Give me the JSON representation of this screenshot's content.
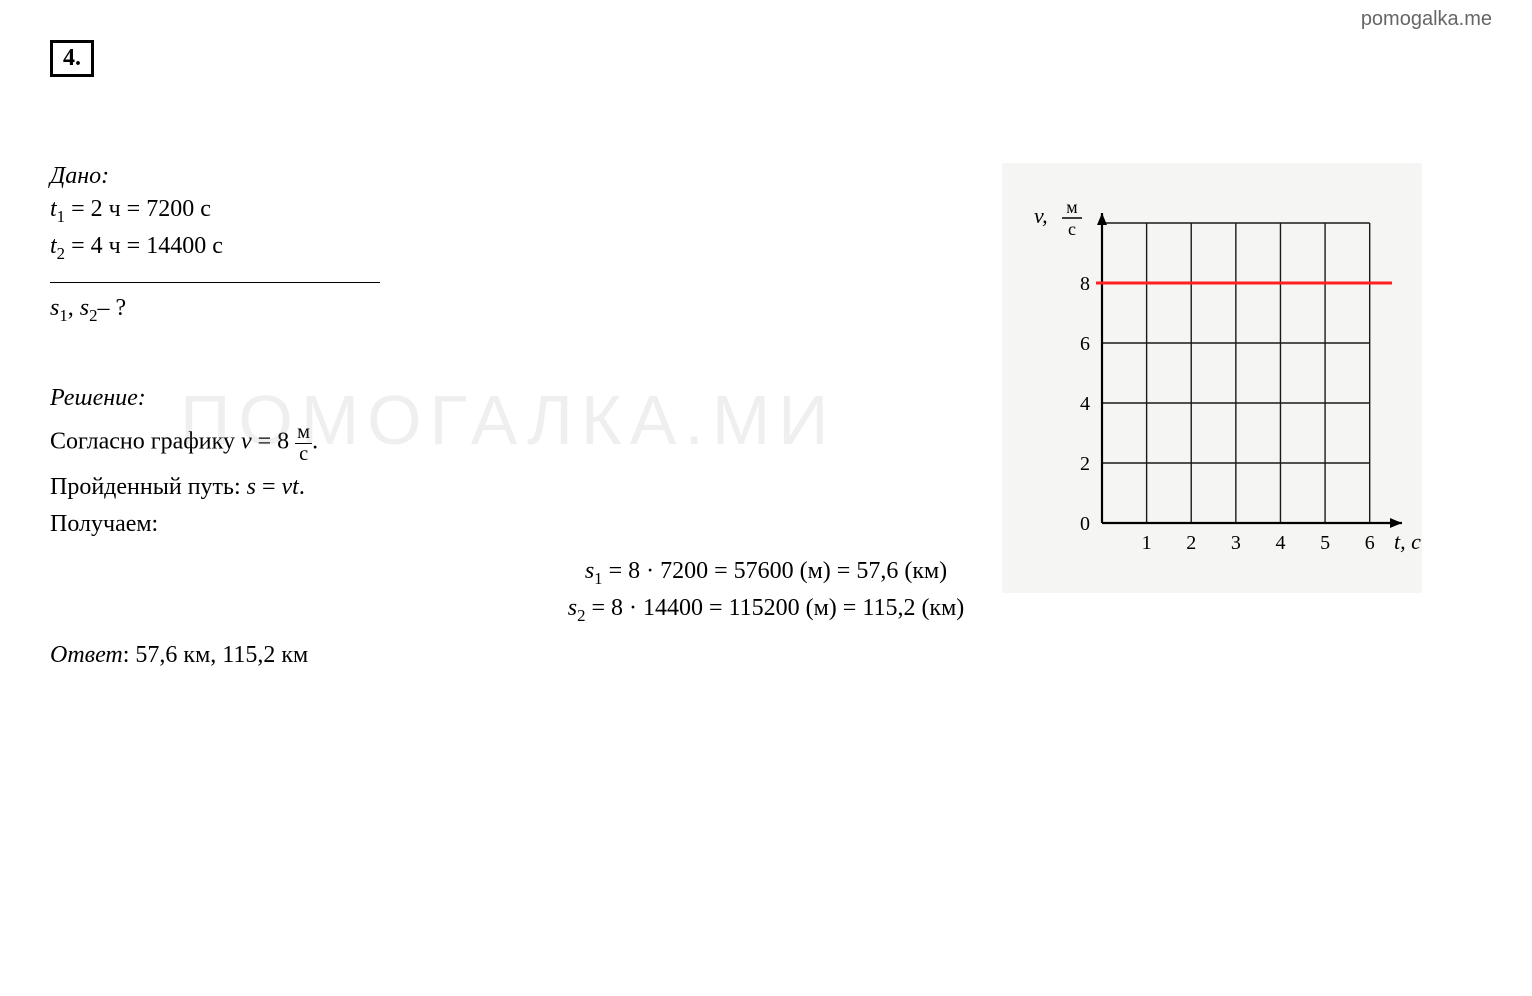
{
  "watermark_url": "pomogalka.me",
  "watermark_big": "ПОМОГАЛКА.МИ",
  "problem_number": "4.",
  "given": {
    "label": "Дано:",
    "t1_html": "t<sub>1</sub> = 2 ч = 7200 c",
    "t2_html": "t<sub>2</sub> = 4 ч = 14400 c"
  },
  "find": {
    "html": "s<sub>1</sub>, s<sub>2</sub> – ?"
  },
  "solution": {
    "label": "Решение:",
    "line1_prefix": "Согласно графику ",
    "line1_v": "v = 8",
    "line1_unit_num": "м",
    "line1_unit_den": "с",
    "line1_suffix": ".",
    "line2": "Пройденный путь: s = vt.",
    "line3": "Получаем:"
  },
  "equations": {
    "eq1_html": "s<sub>1</sub> = 8 · 7200 = 57600 (м) = 57,6 (км)",
    "eq2_html": "s<sub>2</sub> = 8 · 14400 = 115200 (м) = 115,2 (км)"
  },
  "answer": {
    "label": "Ответ",
    "text": ": 57,6 км, 115,2 км"
  },
  "chart": {
    "type": "line",
    "y_label_var": "v,",
    "y_label_unit_num": "м",
    "y_label_unit_den": "с",
    "x_label": "t, с",
    "x_ticks": [
      1,
      2,
      3,
      4,
      5,
      6
    ],
    "y_ticks": [
      0,
      2,
      4,
      6,
      8
    ],
    "x_range": [
      0,
      6.5
    ],
    "y_range": [
      0,
      10
    ],
    "grid_x_max": 6,
    "grid_y_max": 10,
    "data_line_y": 8,
    "data_line_x_start": 0,
    "data_line_x_end": 6.5,
    "background_color": "#f5f5f3",
    "grid_color": "#1a1a1a",
    "grid_stroke_width": 1.4,
    "axis_color": "#000000",
    "axis_stroke_width": 2.2,
    "data_line_color": "#ff2020",
    "data_line_width": 3,
    "tick_font_size": 20,
    "label_font_size": 22,
    "font_family": "Times New Roman, serif"
  }
}
